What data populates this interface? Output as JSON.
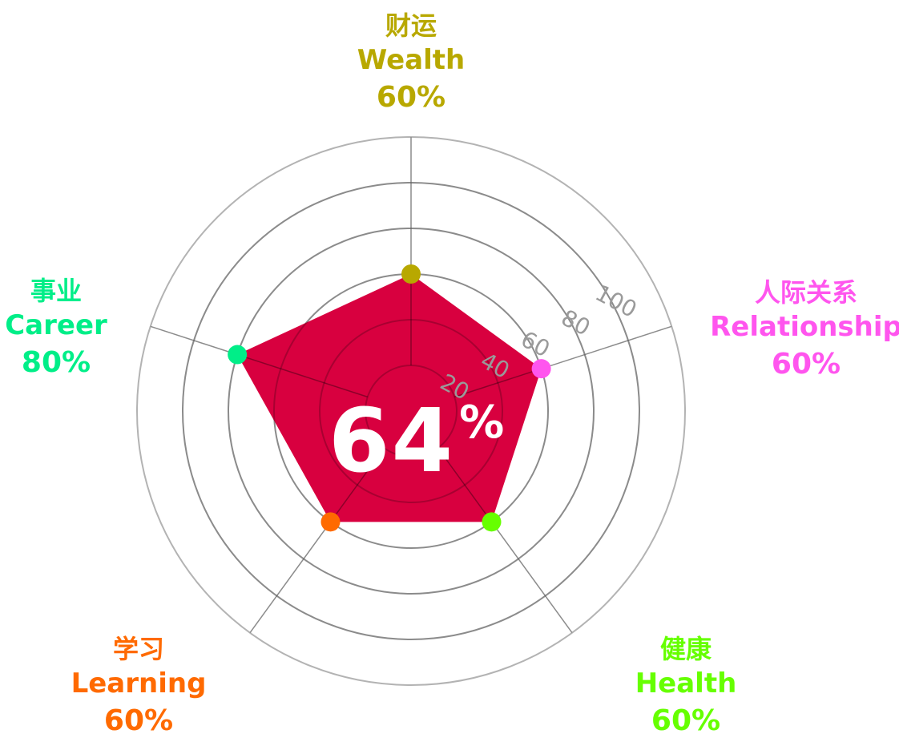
{
  "chart_data": {
    "type": "radar",
    "rlim": [
      0,
      100
    ],
    "rticks": [
      "20",
      "40",
      "60",
      "80",
      "100"
    ],
    "grid": true,
    "axes": [
      {
        "zh": "财运",
        "en": "Wealth",
        "pct_label": "60%",
        "value": 60,
        "color": "#B8A800"
      },
      {
        "zh": "人际关系",
        "en": "Relationship",
        "pct_label": "60%",
        "value": 60,
        "color": "#FF55EE"
      },
      {
        "zh": "健康",
        "en": "Health",
        "pct_label": "60%",
        "value": 60,
        "color": "#66FF00"
      },
      {
        "zh": "学习",
        "en": "Learning",
        "pct_label": "60%",
        "value": 60,
        "color": "#FF6A00"
      },
      {
        "zh": "事业",
        "en": "Career",
        "pct_label": "80%",
        "value": 80,
        "color": "#00EE88"
      }
    ],
    "area_color": "#D8003F",
    "center": {
      "value": "64",
      "sign": "%"
    }
  }
}
